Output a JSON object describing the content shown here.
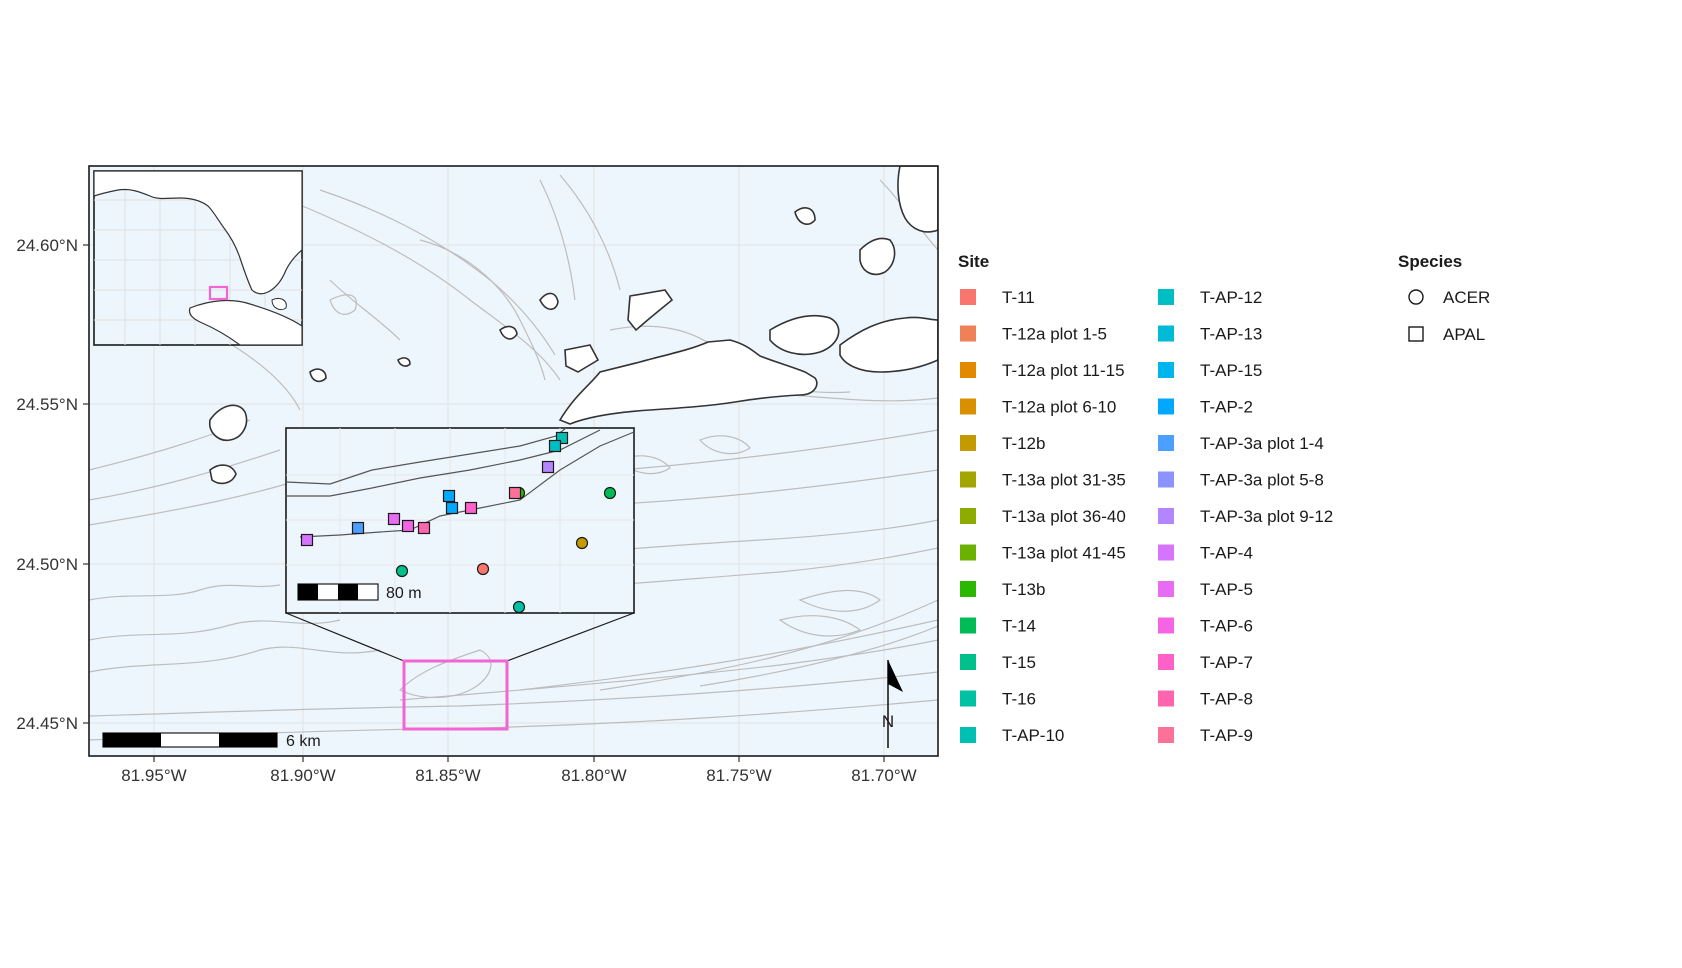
{
  "map": {
    "x_ticks": [
      "81.95°W",
      "81.90°W",
      "81.85°W",
      "81.80°W",
      "81.75°W",
      "81.70°W"
    ],
    "y_ticks": [
      "24.60°N",
      "24.55°N",
      "24.50°N",
      "24.45°N"
    ],
    "scale_bar_label": "6 km",
    "inset_scale_bar_label": "80 m",
    "north_arrow_label": "N",
    "colors": {
      "water": "#eef6fd",
      "land": "#ffffff",
      "highlight": "#f365d3"
    }
  },
  "legend": {
    "site_title": "Site",
    "sites": [
      {
        "label": "T-11",
        "color": "#F8766D"
      },
      {
        "label": "T-12a plot 1-5",
        "color": "#F08057"
      },
      {
        "label": "T-12a plot 11-15",
        "color": "#E38900"
      },
      {
        "label": "T-12a plot 6-10",
        "color": "#D89000"
      },
      {
        "label": "T-12b",
        "color": "#C49A00"
      },
      {
        "label": "T-13a plot 31-35",
        "color": "#A3A500"
      },
      {
        "label": "T-13a plot 36-40",
        "color": "#8EAB00"
      },
      {
        "label": "T-13a plot 41-45",
        "color": "#6BB100"
      },
      {
        "label": "T-13b",
        "color": "#2AB800"
      },
      {
        "label": "T-14",
        "color": "#00BC56"
      },
      {
        "label": "T-15",
        "color": "#00C08B"
      },
      {
        "label": "T-16",
        "color": "#00C1A3"
      },
      {
        "label": "T-AP-10",
        "color": "#00C0B3"
      },
      {
        "label": "T-AP-12",
        "color": "#00BFC4"
      },
      {
        "label": "T-AP-13",
        "color": "#00BAD7"
      },
      {
        "label": "T-AP-15",
        "color": "#00B5EE"
      },
      {
        "label": "T-AP-2",
        "color": "#00A9FF"
      },
      {
        "label": "T-AP-3a plot 1-4",
        "color": "#4B9FFF"
      },
      {
        "label": "T-AP-3a plot 5-8",
        "color": "#8B93FF"
      },
      {
        "label": "T-AP-3a plot 9-12",
        "color": "#B385FF"
      },
      {
        "label": "T-AP-4",
        "color": "#D575FE"
      },
      {
        "label": "T-AP-5",
        "color": "#E76BF3"
      },
      {
        "label": "T-AP-6",
        "color": "#F564E3"
      },
      {
        "label": "T-AP-7",
        "color": "#FF61C9"
      },
      {
        "label": "T-AP-8",
        "color": "#FF65AE"
      },
      {
        "label": "T-AP-9",
        "color": "#FC7198"
      }
    ],
    "species_title": "Species",
    "species": [
      {
        "label": "ACER",
        "shape": "circle"
      },
      {
        "label": "APAL",
        "shape": "square"
      }
    ]
  }
}
